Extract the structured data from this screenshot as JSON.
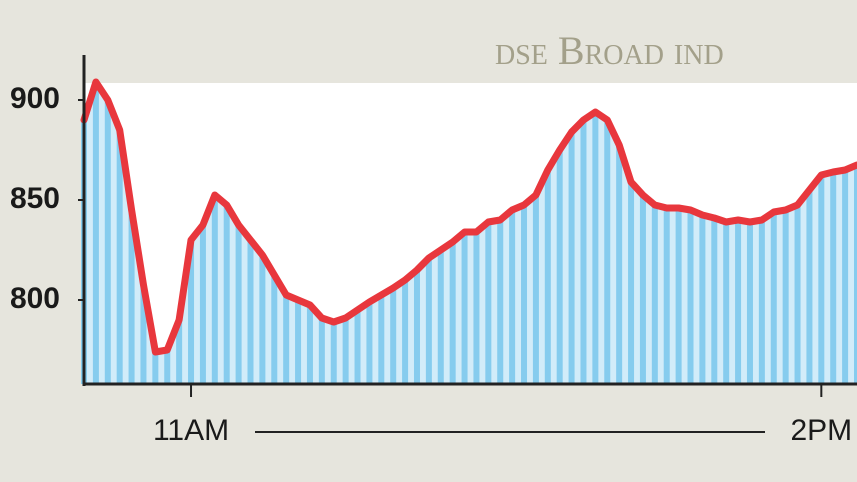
{
  "chart_data": {
    "type": "line",
    "title": "dse Broad ind",
    "categories": [
      null,
      null,
      null,
      null,
      null,
      null,
      null,
      null,
      null,
      "11AM",
      null,
      null,
      null,
      null,
      null,
      null,
      null,
      null,
      null,
      null,
      null,
      null,
      null,
      null,
      null,
      null,
      null,
      null,
      null,
      null,
      null,
      null,
      null,
      null,
      null,
      null,
      null,
      null,
      null,
      null,
      null,
      null,
      null,
      null,
      null,
      null,
      null,
      null,
      null,
      null,
      null,
      null,
      null,
      null,
      null,
      null,
      null,
      null,
      null,
      null,
      null,
      null,
      "2PM",
      null,
      null,
      null
    ],
    "values": [
      890,
      909,
      900,
      885,
      845,
      807.5,
      774,
      775,
      790,
      830,
      837.5,
      852.5,
      847.5,
      837.5,
      830,
      822.5,
      812.5,
      802.5,
      800,
      797.5,
      791,
      789,
      791,
      795,
      799,
      802.5,
      806,
      810,
      815,
      821,
      825,
      829,
      834,
      834,
      839,
      840,
      845,
      847.5,
      852.5,
      865,
      875,
      884,
      890,
      894,
      890,
      877.5,
      859,
      852.5,
      847.5,
      846,
      846,
      845,
      842.5,
      841,
      839,
      840,
      839,
      840,
      844,
      845,
      847.5,
      855,
      862.5,
      864,
      865,
      867.5
    ],
    "ylim": [
      758,
      908.5
    ],
    "yticks": [
      800,
      850,
      900
    ],
    "color": "#e8373d",
    "bar_color": "#86ccee",
    "area_color": "#d2ecf9"
  }
}
